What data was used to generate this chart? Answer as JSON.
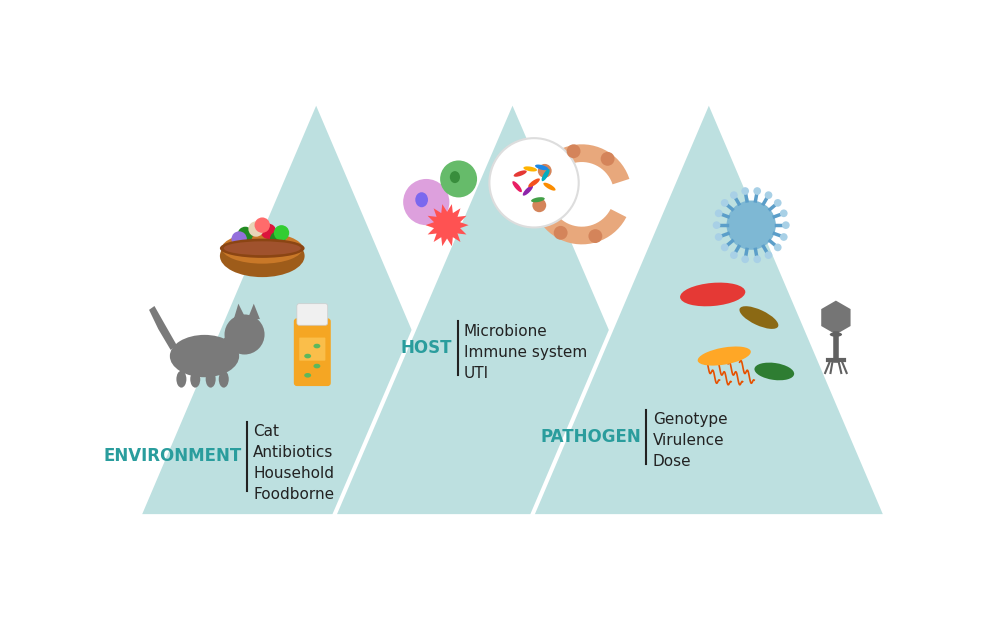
{
  "bg_color": "#ffffff",
  "triangle_fill": "#bde0e0",
  "triangle_edge": "#ffffff",
  "teal_color": "#2a9d9d",
  "dark_color": "#222222",
  "environment_label": "ENVIRONMENT",
  "environment_items": "Cat\nAntibiotics\nHousehold\nFoodborne",
  "host_label": "HOST",
  "host_items": "Microbione\nImmune system\nUTI",
  "pathogen_label": "PATHOGEN",
  "pathogen_items": "Genotype\nVirulence\nDose",
  "font_size_label": 12,
  "font_size_items": 11
}
